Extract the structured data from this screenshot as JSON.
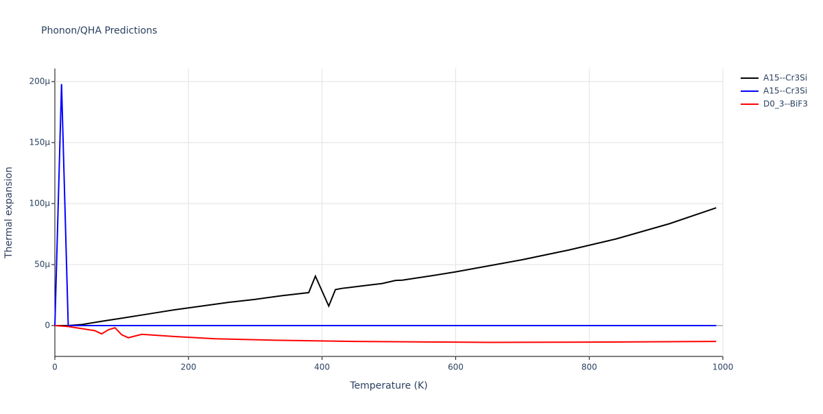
{
  "chart_data": {
    "type": "line",
    "title": "Phonon/QHA Predictions",
    "x_label": "Temperature (K)",
    "y_label": "Thermal expansion",
    "xlim": [
      0,
      1000
    ],
    "xticks": [
      0,
      200,
      400,
      600,
      800,
      1000
    ],
    "ylim": [
      -2.53e-05,
      0.0002107
    ],
    "yticks": [
      0,
      {
        "value": 5e-05,
        "label": "50μ"
      },
      {
        "value": 0.0001,
        "label": "100μ"
      },
      {
        "value": 0.00015,
        "label": "150μ"
      },
      {
        "value": 0.0002,
        "label": "200μ"
      }
    ],
    "grid": true,
    "legend": "top-right",
    "series": [
      {
        "name": "A15--Cr3Si",
        "color": "#000000",
        "x": [
          0,
          20,
          40,
          70,
          100,
          140,
          180,
          220,
          260,
          300,
          340,
          380,
          390,
          410,
          420,
          430,
          460,
          490,
          510,
          520,
          560,
          600,
          650,
          700,
          770,
          840,
          920,
          990
        ],
        "values": [
          0,
          0,
          8e-07,
          3.5e-06,
          6e-06,
          9.5e-06,
          1.3e-05,
          1.6e-05,
          1.9e-05,
          2.15e-05,
          2.45e-05,
          2.7e-05,
          4.05e-05,
          1.6e-05,
          2.95e-05,
          3.05e-05,
          3.25e-05,
          3.45e-05,
          3.7e-05,
          3.72e-05,
          4.05e-05,
          4.4e-05,
          4.9e-05,
          5.4e-05,
          6.2e-05,
          7.1e-05,
          8.35e-05,
          9.65e-05
        ]
      },
      {
        "name": "A15--Cr3Si",
        "color": "#0000ff",
        "x": [
          0,
          10,
          20,
          990
        ],
        "values": [
          0,
          0.000198,
          0,
          0
        ]
      },
      {
        "name": "D0_3--BiF3",
        "color": "#ff0000",
        "x": [
          0,
          20,
          40,
          60,
          70,
          80,
          90,
          100,
          110,
          130,
          180,
          240,
          330,
          450,
          600,
          650,
          800,
          990
        ],
        "values": [
          0,
          -8e-07,
          -2.5e-06,
          -4.2e-06,
          -6.8e-06,
          -3.5e-06,
          -1.8e-06,
          -7.5e-06,
          -1e-05,
          -7.2e-06,
          -9e-06,
          -1.08e-05,
          -1.2e-05,
          -1.3e-05,
          -1.36e-05,
          -1.38e-05,
          -1.36e-05,
          -1.3e-05
        ]
      }
    ]
  }
}
